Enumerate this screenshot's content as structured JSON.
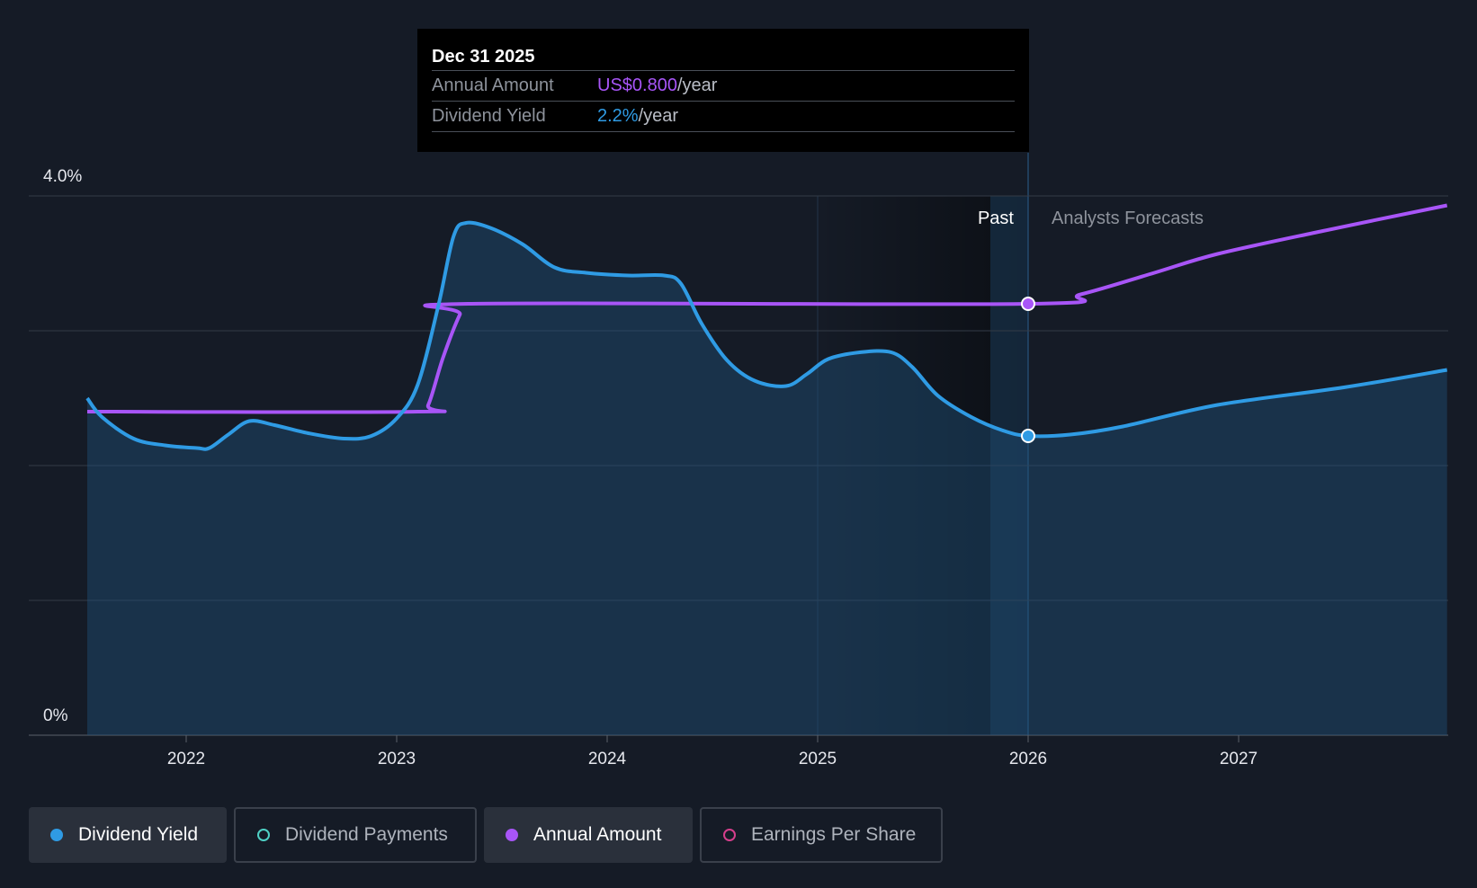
{
  "tooltip": {
    "date": "Dec 31 2025",
    "rows": [
      {
        "label": "Annual Amount",
        "value": "US$0.800",
        "unit": "/year"
      },
      {
        "label": "Dividend Yield",
        "value": "2.2%",
        "unit": "/year"
      }
    ]
  },
  "colors": {
    "yield": "#2f9be4",
    "amount": "#a855f7",
    "payments": "#4fd1c5",
    "eps": "#d53f8c",
    "background": "#151b26"
  },
  "chart_data": {
    "type": "line",
    "title": "",
    "ylim": [
      0,
      4.0
    ],
    "y_tick_labels": [
      "4.0%",
      "0%"
    ],
    "x_tick_labels": [
      "2022",
      "2023",
      "2024",
      "2025",
      "2026",
      "2027"
    ],
    "xlim": [
      2021.5,
      2027.99
    ],
    "past_label": "Past",
    "forecast_label": "Analysts Forecasts",
    "forecast_start": 2026.0,
    "highlight": {
      "x": 2026.0,
      "yield": 2.22,
      "amount": 3.2
    },
    "series": [
      {
        "name": "Dividend Yield",
        "points": [
          [
            2021.53,
            2.5
          ],
          [
            2021.6,
            2.36
          ],
          [
            2021.75,
            2.2
          ],
          [
            2021.9,
            2.15
          ],
          [
            2022.05,
            2.13
          ],
          [
            2022.11,
            2.13
          ],
          [
            2022.2,
            2.23
          ],
          [
            2022.3,
            2.33
          ],
          [
            2022.42,
            2.3
          ],
          [
            2022.58,
            2.24
          ],
          [
            2022.75,
            2.2
          ],
          [
            2022.88,
            2.22
          ],
          [
            2023.0,
            2.35
          ],
          [
            2023.1,
            2.6
          ],
          [
            2023.2,
            3.2
          ],
          [
            2023.27,
            3.7
          ],
          [
            2023.33,
            3.8
          ],
          [
            2023.45,
            3.76
          ],
          [
            2023.6,
            3.64
          ],
          [
            2023.75,
            3.47
          ],
          [
            2023.9,
            3.43
          ],
          [
            2024.1,
            3.41
          ],
          [
            2024.27,
            3.41
          ],
          [
            2024.35,
            3.35
          ],
          [
            2024.45,
            3.05
          ],
          [
            2024.57,
            2.78
          ],
          [
            2024.7,
            2.63
          ],
          [
            2024.85,
            2.59
          ],
          [
            2024.95,
            2.68
          ],
          [
            2025.05,
            2.79
          ],
          [
            2025.2,
            2.84
          ],
          [
            2025.35,
            2.84
          ],
          [
            2025.45,
            2.73
          ],
          [
            2025.57,
            2.52
          ],
          [
            2025.73,
            2.36
          ],
          [
            2025.88,
            2.26
          ],
          [
            2026.0,
            2.22
          ],
          [
            2026.2,
            2.23
          ],
          [
            2026.45,
            2.29
          ],
          [
            2026.9,
            2.45
          ],
          [
            2027.5,
            2.58
          ],
          [
            2027.99,
            2.71
          ]
        ]
      },
      {
        "name": "Annual Amount",
        "points": [
          [
            2021.53,
            2.4
          ],
          [
            2023.1,
            2.4
          ],
          [
            2023.15,
            2.45
          ],
          [
            2023.22,
            2.8
          ],
          [
            2023.3,
            3.12
          ],
          [
            2023.34,
            3.2
          ],
          [
            2026.0,
            3.2
          ],
          [
            2026.25,
            3.27
          ],
          [
            2026.6,
            3.43
          ],
          [
            2026.9,
            3.57
          ],
          [
            2027.4,
            3.74
          ],
          [
            2027.99,
            3.93
          ]
        ]
      }
    ]
  },
  "legend": [
    {
      "label": "Dividend Yield",
      "active": true
    },
    {
      "label": "Dividend Payments",
      "active": false
    },
    {
      "label": "Annual Amount",
      "active": true
    },
    {
      "label": "Earnings Per Share",
      "active": false
    }
  ]
}
